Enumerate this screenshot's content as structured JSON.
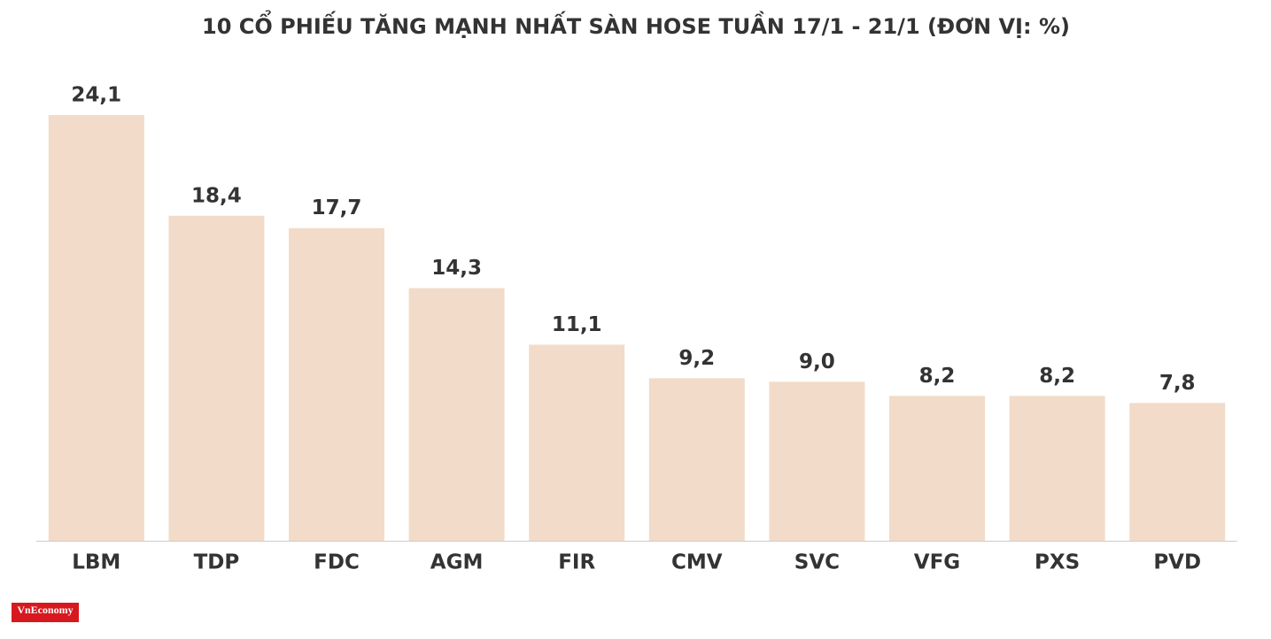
{
  "chart_data": {
    "type": "bar",
    "title": "10 CỔ PHIẾU TĂNG MẠNH NHẤT SÀN HOSE TUẦN 17/1 - 21/1 (ĐƠN VỊ: %)",
    "categories": [
      "LBM",
      "TDP",
      "FDC",
      "AGM",
      "FIR",
      "CMV",
      "SVC",
      "VFG",
      "PXS",
      "PVD"
    ],
    "values": [
      24.1,
      18.4,
      17.7,
      14.3,
      11.1,
      9.2,
      9.0,
      8.2,
      8.2,
      7.8
    ],
    "value_labels": [
      "24,1",
      "18,4",
      "17,7",
      "14,3",
      "11,1",
      "9,2",
      "9,0",
      "8,2",
      "8,2",
      "7,8"
    ],
    "color": "#f2dbc8",
    "logo": "VnEconomy"
  }
}
